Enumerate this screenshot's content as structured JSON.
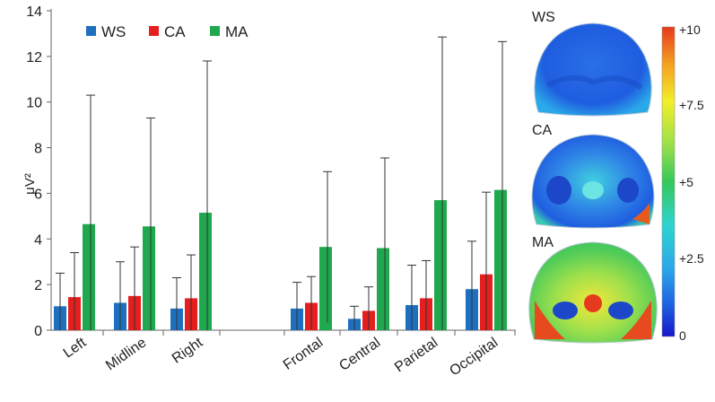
{
  "chart_data": {
    "type": "bar",
    "ylabel": "μV²",
    "ylim": [
      0,
      14
    ],
    "yticks": [
      0,
      2,
      4,
      6,
      8,
      10,
      12,
      14
    ],
    "categories": [
      "Left",
      "Midline",
      "Right",
      "",
      "Frontal",
      "Central",
      "Parietal",
      "Occipital"
    ],
    "series": [
      {
        "name": "WS",
        "color": "#1f6fbf",
        "values": [
          1.05,
          1.2,
          0.95,
          null,
          0.95,
          0.5,
          1.1,
          1.8
        ],
        "errors": [
          1.45,
          1.8,
          1.35,
          null,
          1.15,
          0.55,
          1.75,
          2.1
        ]
      },
      {
        "name": "CA",
        "color": "#e51e1e",
        "values": [
          1.45,
          1.5,
          1.4,
          null,
          1.2,
          0.85,
          1.4,
          2.45
        ],
        "errors": [
          1.95,
          2.15,
          1.9,
          null,
          1.15,
          1.05,
          1.65,
          3.6
        ]
      },
      {
        "name": "MA",
        "color": "#1fa84e",
        "values": [
          4.65,
          4.55,
          5.15,
          null,
          3.65,
          3.6,
          5.7,
          6.15
        ],
        "errors": [
          5.65,
          4.75,
          6.65,
          null,
          3.3,
          3.95,
          7.15,
          6.5
        ]
      }
    ],
    "legend": "top-left"
  },
  "maps": {
    "labels": [
      "WS",
      "CA",
      "MA"
    ],
    "colorbar_ticks": [
      "+10",
      "+7.5",
      "+5",
      "+2.5",
      "0"
    ]
  }
}
